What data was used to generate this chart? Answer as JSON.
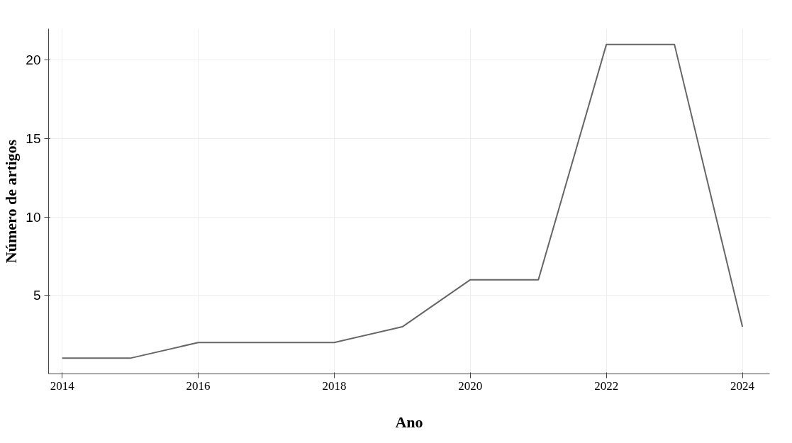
{
  "chart_data": {
    "type": "line",
    "xlabel": "Ano",
    "ylabel": "Número de artigos",
    "x": [
      2014,
      2015,
      2016,
      2017,
      2018,
      2019,
      2020,
      2021,
      2022,
      2023,
      2024
    ],
    "series": [
      {
        "color": "#666666",
        "values": [
          1,
          1,
          2,
          2,
          2,
          3,
          6,
          6,
          21,
          21,
          3
        ]
      }
    ],
    "xlim": [
      2013.8,
      2024.4
    ],
    "xticks": [
      2014,
      2016,
      2018,
      2020,
      2022,
      2024
    ],
    "ylim": [
      0,
      22
    ],
    "yticks": [
      5,
      10,
      15,
      20
    ],
    "grid": true,
    "marker": "none",
    "line_style": "solid"
  }
}
